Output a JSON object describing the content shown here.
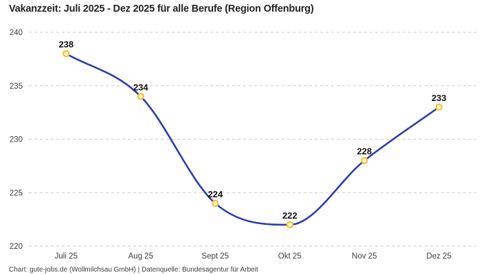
{
  "page": {
    "background": "#ffffff"
  },
  "header": {
    "title": "Vakanzzeit: Juli 2025 - Dez 2025 für alle Berufe (Region Offenburg)"
  },
  "footer": {
    "attribution": "Chart: gute-jobs.de (Wollmilchsau GmbH) | Datenquelle: Bundesagentur für Arbeit"
  },
  "chart_data": {
    "type": "line",
    "title": "Vakanzzeit: Juli 2025 - Dez 2025 für alle Berufe (Region Offenburg)",
    "categories": [
      "Juli 25",
      "Aug 25",
      "Sept 25",
      "Okt 25",
      "Nov 25",
      "Dez 25"
    ],
    "values": [
      238,
      234,
      224,
      222,
      228,
      233
    ],
    "point_labels": [
      "238",
      "234",
      "224",
      "222",
      "228",
      "233"
    ],
    "xlabel": "",
    "ylabel": "",
    "ylim": [
      220,
      240
    ],
    "yticks": [
      220,
      225,
      230,
      235,
      240
    ],
    "grid": "horizontal-dashed",
    "legend": "none",
    "curve": "monotone",
    "colors": {
      "line": "#2b3daa",
      "marker_stroke": "#ffc22e",
      "marker_fill": "#ffffff",
      "grid": "#c9c9c9",
      "point_label": "#141414",
      "axis_text": "#3d3d3d"
    }
  }
}
